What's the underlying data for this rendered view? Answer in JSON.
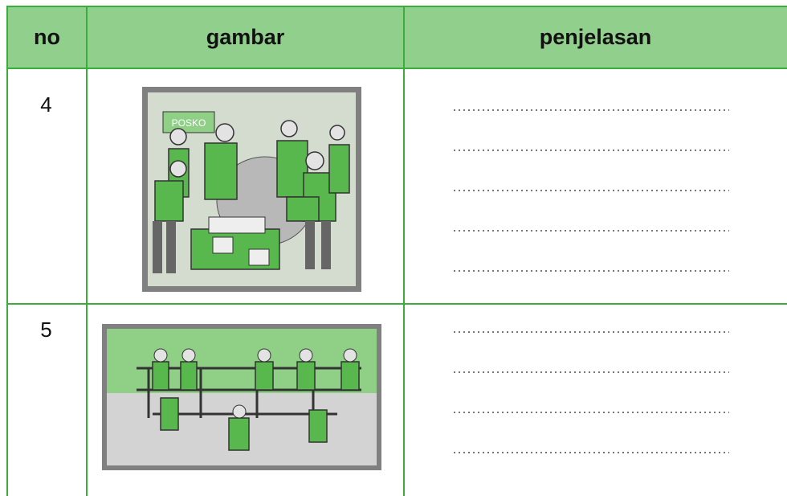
{
  "table": {
    "headers": [
      "no",
      "gambar",
      "penjelasan"
    ],
    "rows": [
      [
        "4"
      ],
      [
        "5"
      ]
    ]
  },
  "images": [
    {
      "label": "POSKO"
    }
  ]
}
